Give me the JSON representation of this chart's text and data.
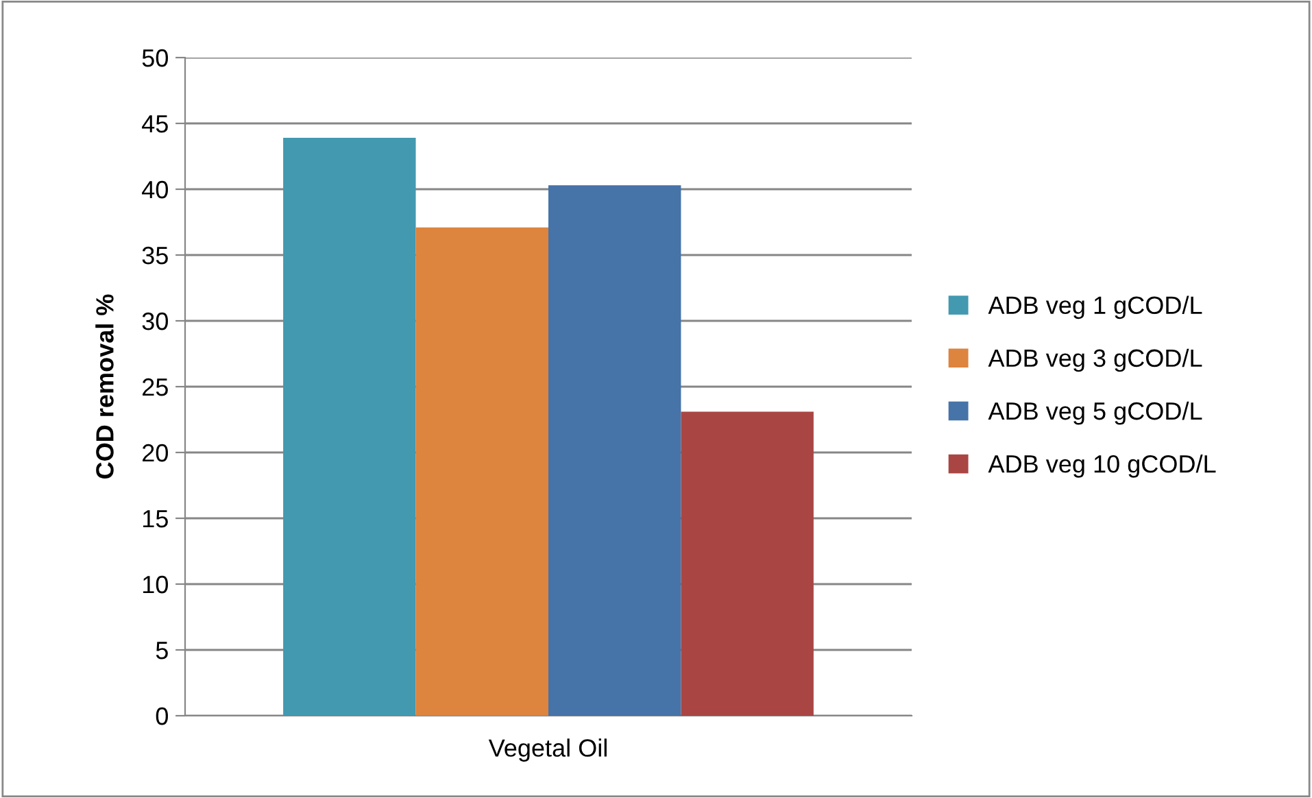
{
  "chart_data": {
    "type": "bar",
    "ylabel": "COD removal %",
    "categories": [
      "Vegetal Oil"
    ],
    "series": [
      {
        "name": "ADB veg 1 gCOD/L",
        "color": "#4299b0",
        "values": [
          43.9
        ]
      },
      {
        "name": "ADB veg 3 gCOD/L",
        "color": "#dd843e",
        "values": [
          37.1
        ]
      },
      {
        "name": "ADB veg 5 gCOD/L",
        "color": "#4673a8",
        "values": [
          40.3
        ]
      },
      {
        "name": "ADB veg 10 gCOD/L",
        "color": "#a94644",
        "values": [
          23.1
        ]
      }
    ],
    "ylim": [
      0,
      50
    ],
    "yticks": [
      0,
      5,
      10,
      15,
      20,
      25,
      30,
      35,
      40,
      45,
      50
    ],
    "grid": "y",
    "legend": "right"
  }
}
